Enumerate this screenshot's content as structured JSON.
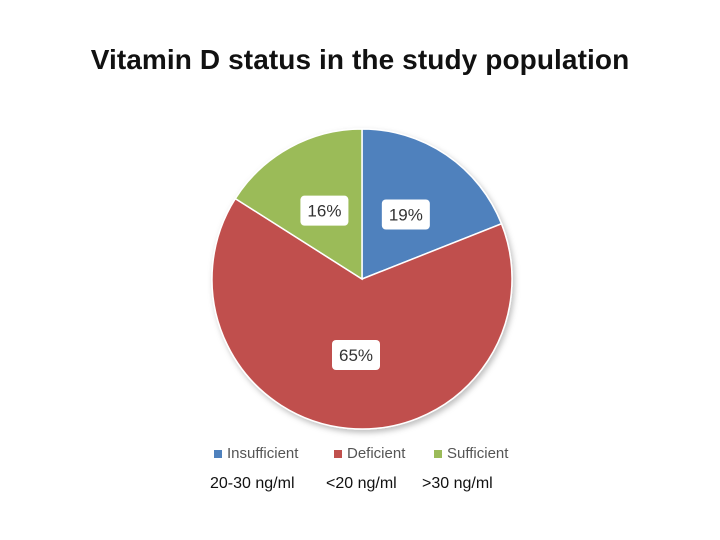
{
  "chart_data": {
    "type": "pie",
    "title": "Vitamin D status in the study population",
    "slices": [
      {
        "name": "Insufficient",
        "value": 19,
        "label": "19%",
        "color": "#4f81bd",
        "range": "20-30 ng/ml"
      },
      {
        "name": "Deficient",
        "value": 65,
        "label": "65%",
        "color": "#c0504d",
        "range": "<20 ng/ml"
      },
      {
        "name": "Sufficient",
        "value": 16,
        "label": "16%",
        "color": "#9bbb59",
        "range": ">30 ng/ml"
      }
    ],
    "legend_position": "bottom"
  }
}
